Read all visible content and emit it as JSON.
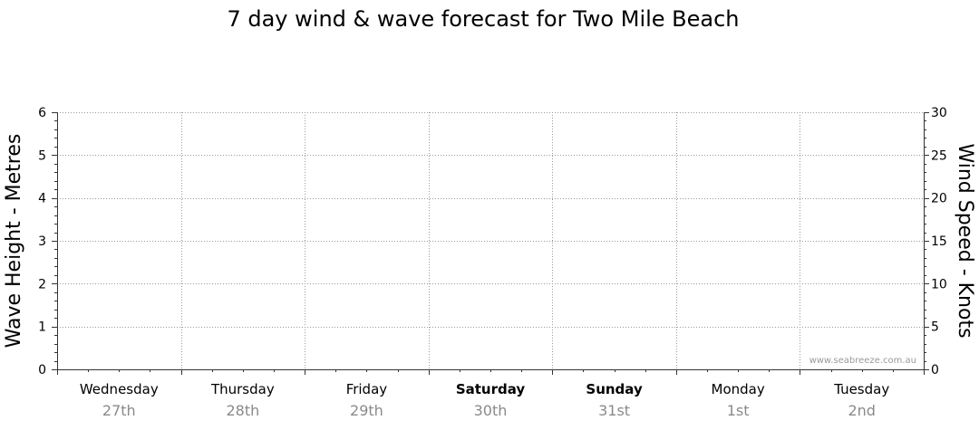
{
  "chart_data": {
    "type": "line",
    "title": "7 day wind & wave forecast for Two Mile Beach",
    "ylabel": "Wave Height - Metres",
    "y2label": "Wind Speed - Knots",
    "ylim": [
      0,
      6
    ],
    "y2lim": [
      0,
      30
    ],
    "yticks": [
      "0",
      "1",
      "2",
      "3",
      "4",
      "5",
      "6"
    ],
    "y2ticks": [
      "0",
      "5",
      "10",
      "15",
      "20",
      "25",
      "30"
    ],
    "days": [
      {
        "name": "Wednesday",
        "date": "27th",
        "weekend": false
      },
      {
        "name": "Thursday",
        "date": "28th",
        "weekend": false
      },
      {
        "name": "Friday",
        "date": "29th",
        "weekend": false
      },
      {
        "name": "Saturday",
        "date": "30th",
        "weekend": true
      },
      {
        "name": "Sunday",
        "date": "31st",
        "weekend": true
      },
      {
        "name": "Monday",
        "date": "1st",
        "weekend": false
      },
      {
        "name": "Tuesday",
        "date": "2nd",
        "weekend": false
      }
    ],
    "grid": true,
    "series": []
  },
  "watermark": "www.seabreeze.com.au"
}
